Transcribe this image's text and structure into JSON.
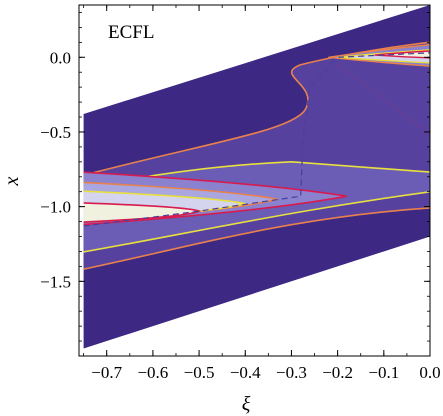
{
  "chart_data": {
    "type": "contour",
    "panel_label": "ECFL",
    "xlabel": "ξ",
    "ylabel": "x",
    "xlim": [
      -0.76,
      0.0
    ],
    "ylim": [
      -2.0,
      0.35
    ],
    "xticks": [
      -0.7,
      -0.6,
      -0.5,
      -0.4,
      -0.3,
      -0.2,
      -0.1,
      0.0
    ],
    "xtick_labels": [
      "−0.7",
      "−0.6",
      "−0.5",
      "−0.4",
      "−0.3",
      "−0.2",
      "−0.1",
      "0.0"
    ],
    "yticks": [
      0.0,
      -0.5,
      -1.0,
      -1.5
    ],
    "ytick_labels": [
      "0.0",
      "−0.5",
      "−1.0",
      "−1.5"
    ],
    "domain_parallelogram": {
      "upper_edge": [
        [
          -0.75,
          -0.38
        ],
        [
          0.0,
          0.35
        ]
      ],
      "lower_edge": [
        [
          -0.75,
          -1.95
        ],
        [
          0.0,
          -1.2
        ]
      ]
    },
    "ridge_path": [
      [
        -0.75,
        -1.13
      ],
      [
        -0.5,
        -1.03
      ],
      [
        -0.28,
        -0.93
      ],
      [
        -0.275,
        -0.55
      ],
      [
        -0.26,
        -0.2
      ],
      [
        -0.2,
        0.0
      ],
      [
        0.0,
        0.03
      ]
    ],
    "colors": {
      "fill_levels": [
        "#3d2883",
        "#56429e",
        "#6b5cb6",
        "#8a81cf",
        "#aaa6e0",
        "#d4d4ee",
        "#f1f1df"
      ],
      "contour_orange": "#e8814d",
      "contour_yellow": "#e8e03f",
      "contour_red": "#d61c4e",
      "ridge_line": "#4a3f9a"
    }
  }
}
